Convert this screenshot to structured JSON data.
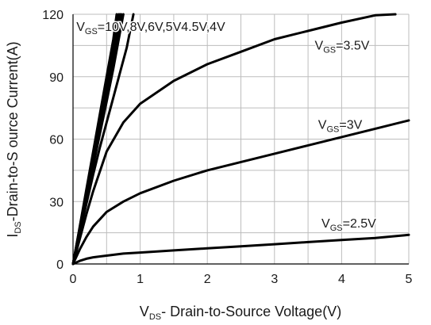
{
  "chart_data": {
    "type": "line",
    "title": "",
    "xlabel": {
      "main": "V",
      "sub": "DS",
      "rest": "- Drain-to-Source Voltage(V)"
    },
    "ylabel": {
      "main": "I",
      "sub": "DS",
      "rest": "-Drain-to-S ource Current(A)"
    },
    "xlim": [
      0,
      5
    ],
    "ylim": [
      0,
      120
    ],
    "x_ticks": [
      0,
      1,
      2,
      3,
      4,
      5
    ],
    "y_ticks": [
      0,
      30,
      60,
      90,
      120
    ],
    "x_minor_grid_step": 0.5,
    "y_minor_grid_step": 15,
    "grid": true,
    "colors": {
      "curve": "#000000",
      "grid": "#bdbdbd",
      "axis": "#000000"
    },
    "series": [
      {
        "label": {
          "main": "V",
          "sub": "GS",
          "rest": "=10V,8V,6V,5V4.5V,4V"
        },
        "lines": [
          {
            "x": [
              0,
              0.1,
              0.2,
              0.3,
              0.4,
              0.5,
              0.6,
              0.65
            ],
            "y": [
              0,
              18,
              36,
              54,
              72,
              90,
              108,
              120
            ]
          },
          {
            "x": [
              0,
              0.1,
              0.2,
              0.3,
              0.4,
              0.5,
              0.6,
              0.68
            ],
            "y": [
              0,
              17.5,
              35,
              52.5,
              70,
              87,
              104,
              120
            ]
          },
          {
            "x": [
              0,
              0.1,
              0.2,
              0.3,
              0.4,
              0.5,
              0.6,
              0.7
            ],
            "y": [
              0,
              17,
              34,
              51,
              68,
              85,
              102,
              120
            ]
          },
          {
            "x": [
              0,
              0.1,
              0.2,
              0.3,
              0.4,
              0.5,
              0.6,
              0.72
            ],
            "y": [
              0,
              16.5,
              33,
              49.5,
              66,
              82,
              98,
              120
            ]
          },
          {
            "x": [
              0,
              0.1,
              0.2,
              0.3,
              0.4,
              0.5,
              0.6,
              0.75
            ],
            "y": [
              0,
              16,
              31.5,
              47,
              62.5,
              78,
              94,
              120
            ]
          },
          {
            "x": [
              0,
              0.1,
              0.2,
              0.3,
              0.4,
              0.5,
              0.6,
              0.7,
              0.8,
              0.9
            ],
            "y": [
              0,
              15,
              29,
              43,
              56,
              68,
              80,
              92,
              104,
              120
            ]
          }
        ],
        "label_anchor": [
          0.05,
          112
        ]
      },
      {
        "label": {
          "main": "V",
          "sub": "GS",
          "rest": "=3.5V"
        },
        "lines": [
          {
            "x": [
              0,
              0.1,
              0.2,
              0.3,
              0.5,
              0.75,
              1,
              1.5,
              2,
              2.5,
              3,
              3.5,
              4,
              4.5,
              4.8
            ],
            "y": [
              0,
              12,
              24,
              35,
              54,
              68,
              77,
              88,
              96,
              102,
              108,
              112,
              116,
              119.5,
              120
            ]
          }
        ],
        "label_anchor": [
          3.6,
          103
        ]
      },
      {
        "label": {
          "main": "V",
          "sub": "GS",
          "rest": "=3V"
        },
        "lines": [
          {
            "x": [
              0,
              0.1,
              0.2,
              0.3,
              0.5,
              0.75,
              1,
              1.5,
              2,
              2.5,
              3,
              3.5,
              4,
              4.5,
              5
            ],
            "y": [
              0,
              7,
              13,
              18,
              25,
              30,
              34,
              40,
              45,
              49,
              53,
              57,
              61,
              65,
              69
            ]
          }
        ],
        "label_anchor": [
          3.65,
          65
        ]
      },
      {
        "label": {
          "main": "V",
          "sub": "GS",
          "rest": "=2.5V"
        },
        "lines": [
          {
            "x": [
              0,
              0.1,
              0.2,
              0.3,
              0.5,
              0.75,
              1,
              1.5,
              2,
              2.5,
              3,
              3.5,
              4,
              4.5,
              5
            ],
            "y": [
              0,
              1.5,
              2.5,
              3.2,
              4,
              5,
              5.5,
              6.5,
              7.5,
              8.5,
              9.5,
              10.5,
              11.5,
              12.5,
              14
            ]
          }
        ],
        "label_anchor": [
          3.7,
          17.5
        ]
      }
    ]
  }
}
